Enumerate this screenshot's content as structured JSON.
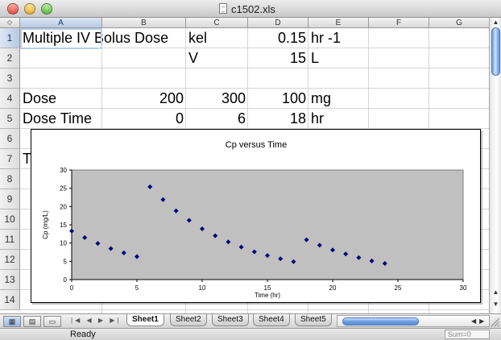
{
  "window": {
    "title": "c1502.xls"
  },
  "columns": [
    "A",
    "B",
    "C",
    "D",
    "E",
    "F",
    "G"
  ],
  "rows": [
    "1",
    "2",
    "3",
    "4",
    "5",
    "6",
    "7",
    "8",
    "9",
    "10",
    "11",
    "12",
    "13",
    "14"
  ],
  "cells": {
    "A1": "Multiple IV Bolus Dose",
    "C1": "kel",
    "D1": "0.15",
    "E1": "hr -1",
    "C2": "V",
    "D2": "15",
    "E2": "L",
    "A4": "Dose",
    "B4": "200",
    "C4": "300",
    "D4": "100",
    "E4": "mg",
    "A5": "Dose Time",
    "B5": "0",
    "C5": "6",
    "D5": "18",
    "E5": "hr",
    "A7": "T"
  },
  "sheet_tabs": [
    "Sheet1",
    "Sheet2",
    "Sheet3",
    "Sheet4",
    "Sheet5"
  ],
  "active_sheet": "Sheet1",
  "status": {
    "text": "Ready",
    "sum": "Sum=0"
  },
  "colors": {
    "plot_background": "#c0c0c0",
    "marker": "#000080",
    "selection": "#b7cbe8"
  },
  "chart_data": {
    "type": "scatter",
    "title": "Cp versus Time",
    "xlabel": "Time (hr)",
    "ylabel": "Cp (mg/L)",
    "xlim": [
      0,
      30
    ],
    "ylim": [
      0,
      30
    ],
    "xticks": [
      0,
      5,
      10,
      15,
      20,
      25,
      30
    ],
    "yticks": [
      0,
      5,
      10,
      15,
      20,
      25,
      30
    ],
    "grid": false,
    "legend": "none",
    "x": [
      0,
      1,
      2,
      3,
      4,
      5,
      6,
      7,
      8,
      9,
      10,
      11,
      12,
      13,
      14,
      15,
      16,
      17,
      18,
      19,
      20,
      21,
      22,
      23,
      24
    ],
    "y": [
      13.3,
      11.5,
      9.9,
      8.5,
      7.3,
      6.3,
      25.4,
      21.9,
      18.8,
      16.2,
      13.9,
      12.0,
      10.3,
      8.9,
      7.6,
      6.6,
      5.7,
      4.9,
      10.9,
      9.4,
      8.1,
      7.0,
      6.0,
      5.1,
      4.4
    ]
  }
}
